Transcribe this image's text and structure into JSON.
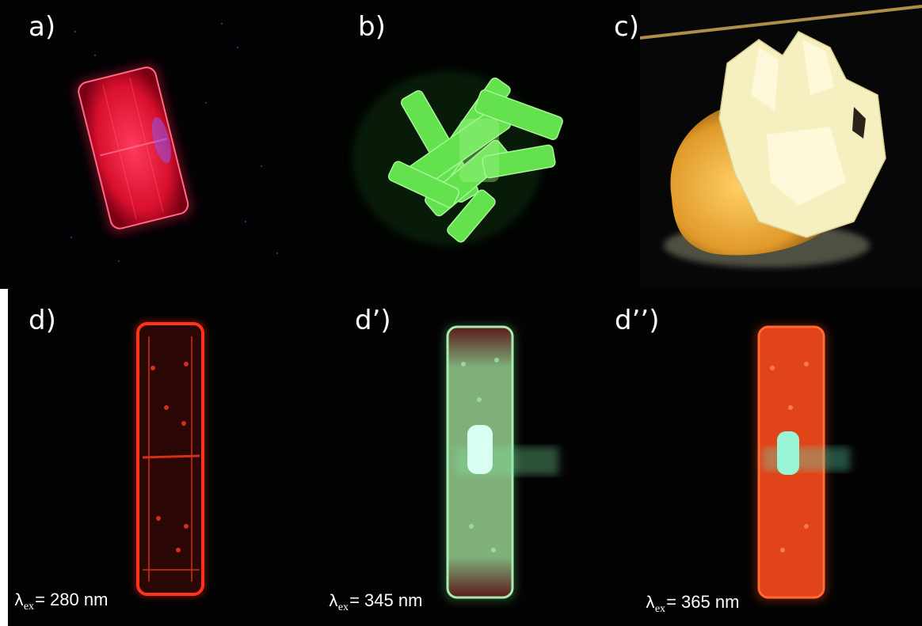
{
  "figure": {
    "panels": [
      {
        "id": "a",
        "label": "a)",
        "emission_color": "#e8173a",
        "crystal": "single-block-red-icon"
      },
      {
        "id": "b",
        "label": "b)",
        "emission_color": "#5fe24a",
        "crystal": "needle-cluster-green-icon"
      },
      {
        "id": "c",
        "label": "c)",
        "emission_color": "#f3e7a9",
        "crystal": "block-cluster-yellow-icon"
      },
      {
        "id": "d",
        "label": "d)",
        "emission_color": "#ff2a14",
        "crystal": "bar-red-icon"
      },
      {
        "id": "d1",
        "label": "d’)",
        "emission_color": "#9fdc9a",
        "crystal": "bar-green-icon"
      },
      {
        "id": "d2",
        "label": "d’’)",
        "emission_color": "#ff4a16",
        "crystal": "bar-orange-icon"
      }
    ],
    "excitation": [
      {
        "symbol": "λ",
        "subscript": "ex",
        "equals": "=",
        "value": " 280 nm"
      },
      {
        "symbol": "λ",
        "subscript": "ex",
        "equals": "=",
        "value": " 345 nm"
      },
      {
        "symbol": "λ",
        "subscript": "ex",
        "equals": "=",
        "value": " 365 nm"
      }
    ]
  }
}
